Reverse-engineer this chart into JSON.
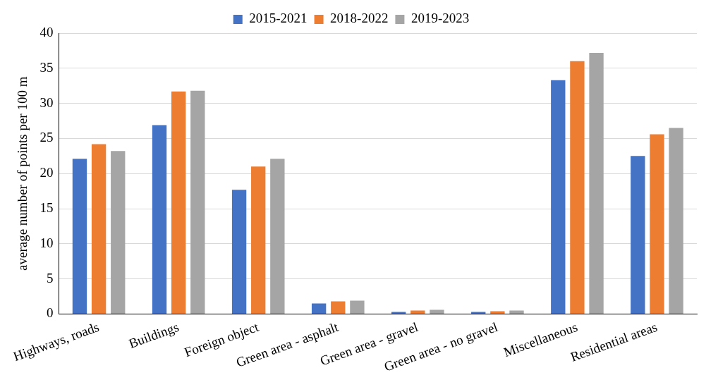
{
  "chart_data": {
    "type": "bar",
    "ylabel": "average number of points per 100 m",
    "categories": [
      "Highways, roads",
      "Buildings",
      "Foreign object",
      "Green area - asphalt",
      "Green area - gravel",
      "Green area - no gravel",
      "Miscellaneous",
      "Residential areas"
    ],
    "series": [
      {
        "name": "2015-2021",
        "color": "#4472c4",
        "values": [
          22.1,
          26.9,
          17.7,
          1.5,
          0.3,
          0.3,
          33.3,
          22.5
        ]
      },
      {
        "name": "2018-2022",
        "color": "#ed7d31",
        "values": [
          24.2,
          31.7,
          21.0,
          1.8,
          0.5,
          0.4,
          36.0,
          25.6
        ]
      },
      {
        "name": "2019-2023",
        "color": "#a5a5a5",
        "values": [
          23.2,
          31.8,
          22.1,
          1.9,
          0.6,
          0.5,
          37.2,
          26.5
        ]
      }
    ],
    "ylim": [
      0,
      40
    ],
    "yticks": [
      0,
      5,
      10,
      15,
      20,
      25,
      30,
      35,
      40
    ],
    "grid": "y",
    "legend": "top"
  }
}
